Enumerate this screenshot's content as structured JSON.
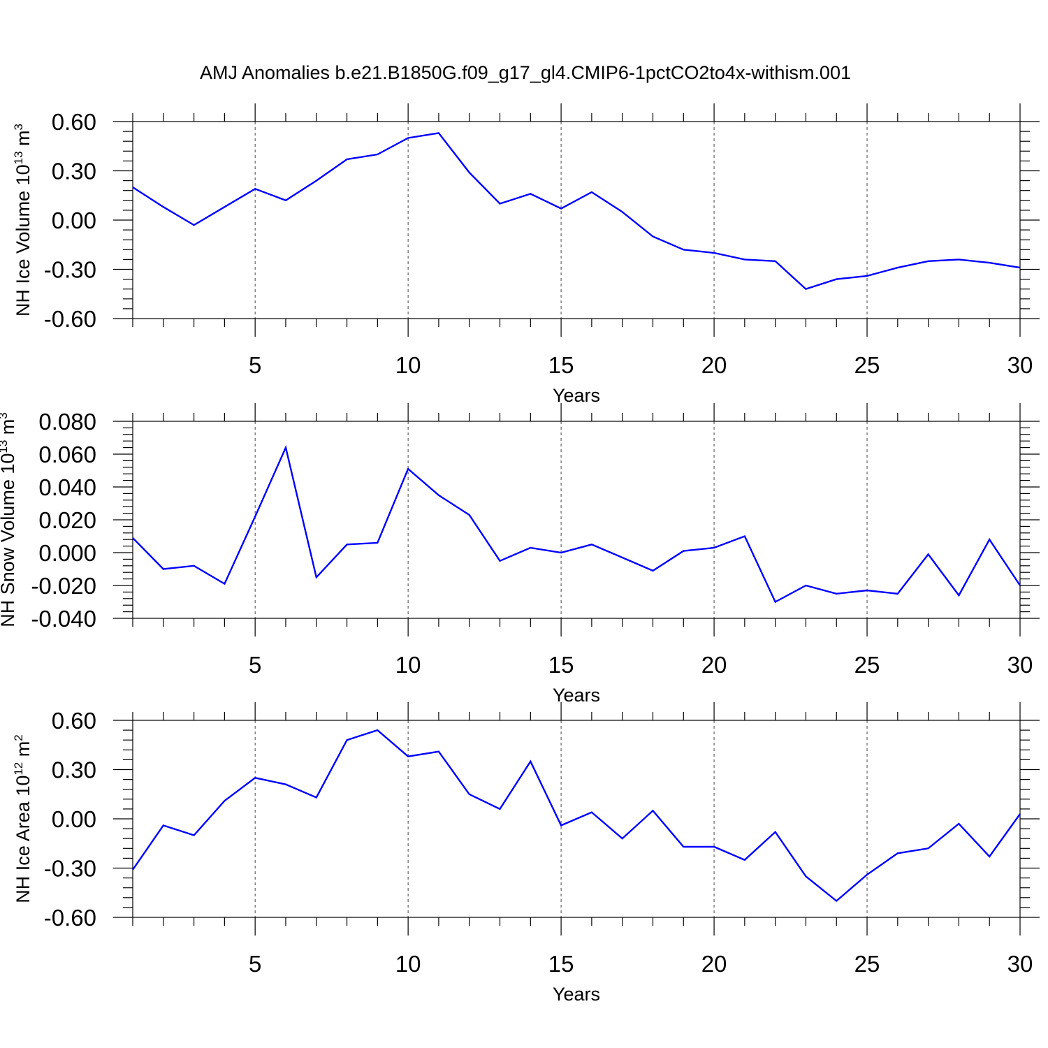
{
  "title": "AMJ Anomalies b.e21.B1850G.f09_g17_gl4.CMIP6-1pctCO2to4x-withism.001",
  "line_color": "#0000ff",
  "chart_data": [
    {
      "type": "line",
      "ylabel_main": "NH Ice Volume 10",
      "ylabel_sup": "13",
      "ylabel_unit": " m",
      "ylabel_unit_sup": "3",
      "xlabel": "Years",
      "xlim": [
        1,
        30
      ],
      "ylim": [
        -0.6,
        0.6
      ],
      "x_ticks": [
        5,
        10,
        15,
        20,
        25,
        30
      ],
      "y_ticks": [
        -0.6,
        -0.3,
        0.0,
        0.3,
        0.6
      ],
      "y_tick_labels": [
        "-0.60",
        "-0.30",
        "0.00",
        "0.30",
        "0.60"
      ],
      "grid_x": [
        5,
        10,
        15,
        20,
        25
      ],
      "x": [
        1,
        2,
        3,
        4,
        5,
        6,
        7,
        8,
        9,
        10,
        11,
        12,
        13,
        14,
        15,
        16,
        17,
        18,
        19,
        20,
        21,
        22,
        23,
        24,
        25,
        26,
        27,
        28,
        29,
        30
      ],
      "values": [
        0.2,
        0.08,
        -0.03,
        0.08,
        0.19,
        0.12,
        0.24,
        0.37,
        0.4,
        0.5,
        0.53,
        0.29,
        0.1,
        0.16,
        0.07,
        0.17,
        0.05,
        -0.1,
        -0.18,
        -0.2,
        -0.24,
        -0.25,
        -0.42,
        -0.36,
        -0.34,
        -0.29,
        -0.25,
        -0.24,
        -0.26,
        -0.29
      ]
    },
    {
      "type": "line",
      "ylabel_main": "NH Snow Volume 10",
      "ylabel_sup": "13",
      "ylabel_unit": " m",
      "ylabel_unit_sup": "3",
      "xlabel": "Years",
      "xlim": [
        1,
        30
      ],
      "ylim": [
        -0.04,
        0.08
      ],
      "x_ticks": [
        5,
        10,
        15,
        20,
        25,
        30
      ],
      "y_ticks": [
        -0.04,
        -0.02,
        0.0,
        0.02,
        0.04,
        0.06,
        0.08
      ],
      "y_tick_labels": [
        "-0.040",
        "-0.020",
        "0.000",
        "0.020",
        "0.040",
        "0.060",
        "0.080"
      ],
      "grid_x": [
        5,
        10,
        15,
        20,
        25
      ],
      "x": [
        1,
        2,
        3,
        4,
        5,
        6,
        7,
        8,
        9,
        10,
        11,
        12,
        13,
        14,
        15,
        16,
        17,
        18,
        19,
        20,
        21,
        22,
        23,
        24,
        25,
        26,
        27,
        28,
        29,
        30
      ],
      "values": [
        0.009,
        -0.01,
        -0.008,
        -0.019,
        0.022,
        0.064,
        -0.015,
        0.005,
        0.006,
        0.051,
        0.035,
        0.023,
        -0.005,
        0.003,
        0.0,
        0.005,
        -0.003,
        -0.011,
        0.001,
        0.003,
        0.01,
        -0.03,
        -0.02,
        -0.025,
        -0.023,
        -0.025,
        -0.001,
        -0.026,
        0.008,
        -0.02
      ]
    },
    {
      "type": "line",
      "ylabel_main": "NH Ice Area 10",
      "ylabel_sup": "12",
      "ylabel_unit": " m",
      "ylabel_unit_sup": "2",
      "xlabel": "Years",
      "xlim": [
        1,
        30
      ],
      "ylim": [
        -0.6,
        0.6
      ],
      "x_ticks": [
        5,
        10,
        15,
        20,
        25,
        30
      ],
      "y_ticks": [
        -0.6,
        -0.3,
        0.0,
        0.3,
        0.6
      ],
      "y_tick_labels": [
        "-0.60",
        "-0.30",
        "0.00",
        "0.30",
        "0.60"
      ],
      "grid_x": [
        5,
        10,
        15,
        20,
        25
      ],
      "x": [
        1,
        2,
        3,
        4,
        5,
        6,
        7,
        8,
        9,
        10,
        11,
        12,
        13,
        14,
        15,
        16,
        17,
        18,
        19,
        20,
        21,
        22,
        23,
        24,
        25,
        26,
        27,
        28,
        29,
        30
      ],
      "values": [
        -0.31,
        -0.04,
        -0.1,
        0.11,
        0.25,
        0.21,
        0.13,
        0.48,
        0.54,
        0.38,
        0.41,
        0.15,
        0.06,
        0.35,
        -0.04,
        0.04,
        -0.12,
        0.05,
        -0.17,
        -0.17,
        -0.25,
        -0.08,
        -0.35,
        -0.5,
        -0.34,
        -0.21,
        -0.18,
        -0.03,
        -0.23,
        0.03
      ]
    }
  ]
}
